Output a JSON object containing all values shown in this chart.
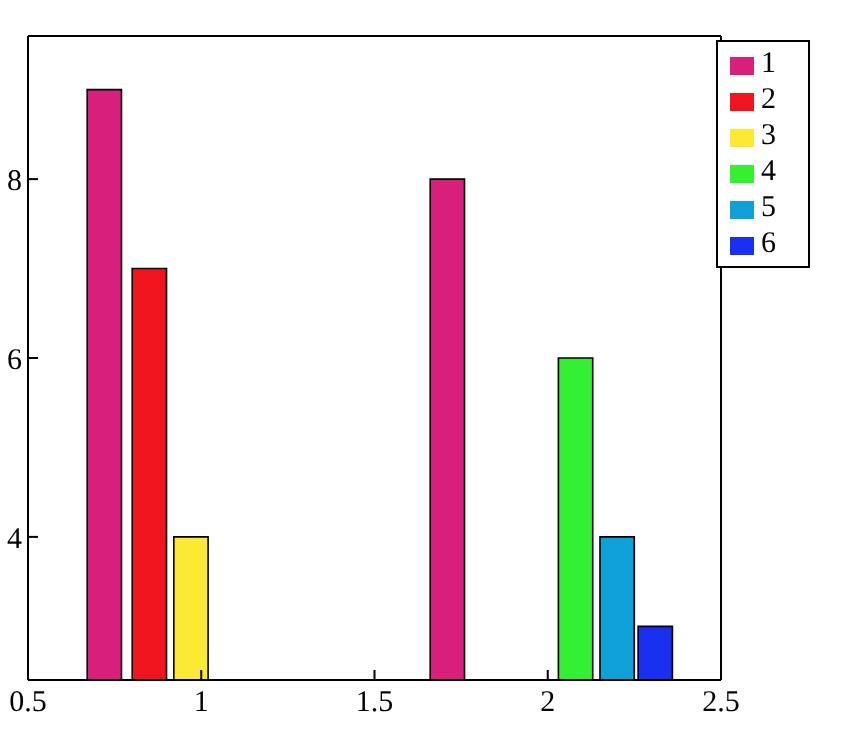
{
  "chart_data": {
    "type": "bar",
    "xlim": [
      0.5,
      2.5
    ],
    "xticks": [
      0.5,
      1,
      1.5,
      2,
      2.5
    ],
    "ylim": [
      2.4,
      9.6
    ],
    "yticks": [
      4,
      6,
      8
    ],
    "legend": "top right",
    "series": [
      {
        "name": "1",
        "color": "#d81f7c",
        "x": [
          0.72,
          1.71
        ],
        "values": [
          9,
          8
        ]
      },
      {
        "name": "2",
        "color": "#f0141e",
        "x": [
          0.85
        ],
        "values": [
          7
        ]
      },
      {
        "name": "3",
        "color": "#fbe934",
        "x": [
          0.97
        ],
        "values": [
          4
        ]
      },
      {
        "name": "4",
        "color": "#33f033",
        "x": [
          2.08
        ],
        "values": [
          6
        ]
      },
      {
        "name": "5",
        "color": "#0fa0d8",
        "x": [
          2.2
        ],
        "values": [
          4
        ]
      },
      {
        "name": "6",
        "color": "#1a30f0",
        "x": [
          2.31
        ],
        "values": [
          3
        ]
      }
    ]
  }
}
